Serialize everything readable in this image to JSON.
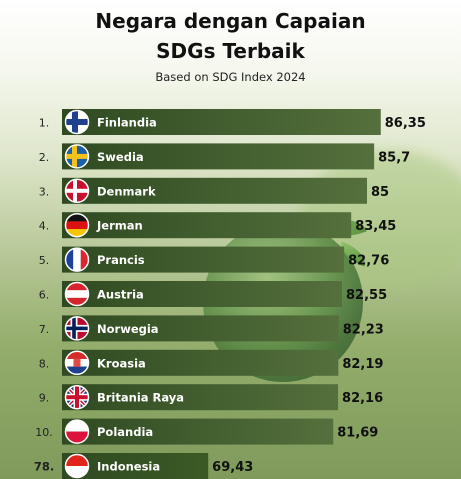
{
  "title_line1": "Negara dengan Capaian",
  "title_line2": "SDGs Terbaik",
  "subtitle": "Based on SDG Index 2024",
  "colors": {
    "bar": "#2f4a21",
    "bar_light": "#55703c",
    "highlight_bar": "#3a5a25",
    "rank_text": "#222222",
    "value_text": "#111111",
    "label_text": "#ffffff"
  },
  "chart_data": {
    "type": "bar",
    "orientation": "horizontal",
    "title": "Negara dengan Capaian SDGs Terbaik",
    "subtitle": "Based on SDG Index 2024",
    "ranks": [
      "1.",
      "2.",
      "3.",
      "4.",
      "5.",
      "6.",
      "7.",
      "8.",
      "9.",
      "10.",
      "78."
    ],
    "categories": [
      "Finlandia",
      "Swedia",
      "Denmark",
      "Jerman",
      "Prancis",
      "Austria",
      "Norwegia",
      "Kroasia",
      "Britania Raya",
      "Polandia",
      "Indonesia"
    ],
    "flags": [
      "finland-flag-icon",
      "sweden-flag-icon",
      "denmark-flag-icon",
      "germany-flag-icon",
      "france-flag-icon",
      "austria-flag-icon",
      "norway-flag-icon",
      "croatia-flag-icon",
      "uk-flag-icon",
      "poland-flag-icon",
      "indonesia-flag-icon"
    ],
    "values": [
      86.35,
      85.7,
      85,
      83.45,
      82.76,
      82.55,
      82.23,
      82.19,
      82.16,
      81.69,
      69.43
    ],
    "value_labels": [
      "86,35",
      "85,7",
      "85",
      "83,45",
      "82,76",
      "82,55",
      "82,23",
      "82,19",
      "82,16",
      "81,69",
      "69,43"
    ],
    "highlighted": "Indonesia"
  }
}
